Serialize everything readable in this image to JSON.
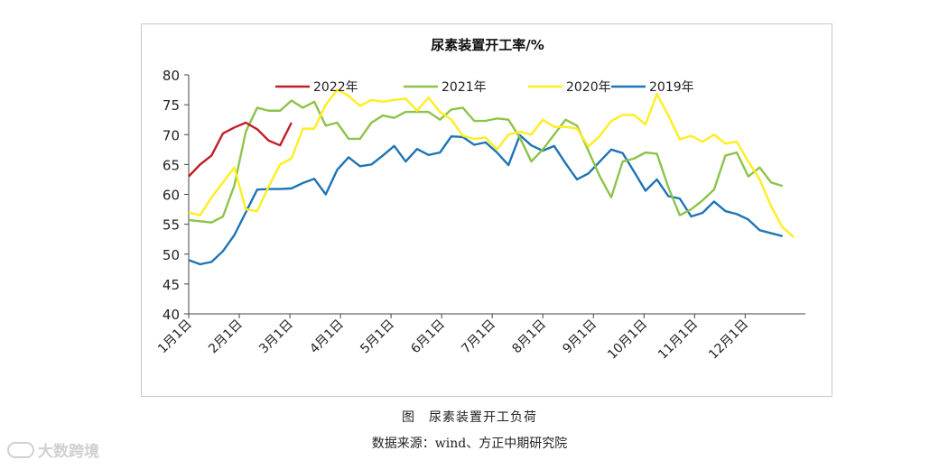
{
  "chart_data": {
    "type": "line",
    "title": "尿素装置开工率/%",
    "xlabel": "",
    "ylabel": "",
    "ylim": [
      40,
      80
    ],
    "yticks": [
      40,
      45,
      50,
      55,
      60,
      65,
      70,
      75,
      80
    ],
    "grid": false,
    "legend_position": "top",
    "month_labels": [
      "1月1日",
      "2月1日",
      "3月1日",
      "4月1日",
      "5月1日",
      "6月1日",
      "7月1日",
      "8月1日",
      "9月1日",
      "10月1日",
      "11月1日",
      "12月1日"
    ],
    "x_unit": "week of year",
    "series": [
      {
        "name": "2022年",
        "color": "#c0202a",
        "values": [
          63,
          65,
          66.5,
          70.2,
          71.2,
          72,
          70.9,
          69,
          68.2,
          72
        ]
      },
      {
        "name": "2021年",
        "color": "#8dc34a",
        "values": [
          55.7,
          55.5,
          55.3,
          56.3,
          61.5,
          70.5,
          74.5,
          74,
          74,
          75.7,
          74.5,
          75.5,
          71.5,
          72,
          69.3,
          69.3,
          72,
          73.2,
          72.8,
          73.8,
          73.8,
          73.8,
          72.5,
          74.2,
          74.5,
          72.3,
          72.3,
          72.7,
          72.5,
          69.5,
          65.5,
          67.5,
          70,
          72.5,
          71.5,
          67.3,
          63,
          59.5,
          65.5,
          66,
          67,
          66.8,
          61.2,
          56.5,
          57.5,
          59,
          60.8,
          66.5,
          67,
          63,
          64.5,
          62,
          61.4
        ]
      },
      {
        "name": "2020年",
        "color": "#ffee1f",
        "values": [
          57,
          56.5,
          59.5,
          62,
          64.5,
          57.5,
          57.2,
          61.3,
          65,
          66,
          71,
          71,
          75,
          77.5,
          76.5,
          74.8,
          75.8,
          75.5,
          75.8,
          76,
          74,
          76.2,
          73.8,
          72.5,
          69.8,
          69.3,
          69.5,
          67.5,
          70,
          70.5,
          70,
          72.5,
          71.3,
          71.3,
          71,
          68,
          69.8,
          72.3,
          73.3,
          73.3,
          71.7,
          76.8,
          73.2,
          69.2,
          69.8,
          68.8,
          70,
          68.5,
          68.8,
          65.5,
          62.5,
          58,
          54.5,
          52.8
        ]
      },
      {
        "name": "2019年",
        "color": "#1e74b4",
        "values": [
          49,
          48.3,
          48.7,
          50.5,
          53.2,
          57,
          60.8,
          60.9,
          60.9,
          61,
          61.9,
          62.6,
          60,
          64.1,
          66.2,
          64.7,
          65,
          66.5,
          68.1,
          65.5,
          67.6,
          66.6,
          67,
          69.7,
          69.6,
          68.3,
          68.7,
          67,
          64.9,
          69.9,
          68.2,
          67.3,
          68.1,
          65.2,
          62.5,
          63.5,
          65.5,
          67.5,
          66.9,
          63.8,
          60.6,
          62.5,
          59.7,
          59.3,
          56.3,
          56.9,
          58.8,
          57.2,
          56.7,
          55.8,
          54,
          53.5,
          53
        ]
      }
    ]
  },
  "figure_caption": "图　尿素装置开工负荷",
  "source_caption": "数据来源：wind、方正中期研究院",
  "watermark": "大数跨境"
}
